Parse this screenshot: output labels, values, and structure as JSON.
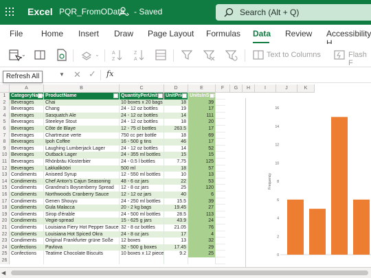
{
  "titlebar": {
    "app_name": "Excel",
    "doc_title": "PQR_FromOData",
    "status": "- Saved",
    "search_placeholder": "Search (Alt + Q)",
    "bg": "#107c41"
  },
  "tabs": [
    {
      "label": "File",
      "active": false
    },
    {
      "label": "Home",
      "active": false
    },
    {
      "label": "Insert",
      "active": false
    },
    {
      "label": "Draw",
      "active": false
    },
    {
      "label": "Page Layout",
      "active": false
    },
    {
      "label": "Formulas",
      "active": false
    },
    {
      "label": "Data",
      "active": true
    },
    {
      "label": "Review",
      "active": false
    },
    {
      "label": "Accessibility H",
      "active": false
    }
  ],
  "ribbon": {
    "text_to_columns": "Text to Columns",
    "flash_fill": "Flash F"
  },
  "tooltip": "Refresh All",
  "formula": {
    "namebox": "",
    "fx": "fx",
    "content": ""
  },
  "grid": {
    "column_letters": [
      "A",
      "B",
      "C",
      "D",
      "E",
      "F",
      "G",
      "H",
      "I",
      "J",
      "K"
    ],
    "headers": [
      "CategoryName",
      "ProductName",
      "QuantityPerUnit",
      "UnitPrice",
      "UnitsInStock"
    ],
    "rows": [
      [
        "Beverages",
        "Chai",
        "10 boxes x 20 bags",
        "18",
        "39"
      ],
      [
        "Beverages",
        "Chang",
        "24 - 12 oz bottles",
        "19",
        "17"
      ],
      [
        "Beverages",
        "Sasquatch Ale",
        "24 - 12 oz bottles",
        "14",
        "111"
      ],
      [
        "Beverages",
        "Steeleye Stout",
        "24 - 12 oz bottles",
        "18",
        "20"
      ],
      [
        "Beverages",
        "Côte de Blaye",
        "12 - 75 cl bottles",
        "263.5",
        "17"
      ],
      [
        "Beverages",
        "Chartreuse verte",
        "750 cc per bottle",
        "18",
        "69"
      ],
      [
        "Beverages",
        "Ipoh Coffee",
        "16 - 500 g tins",
        "46",
        "17"
      ],
      [
        "Beverages",
        "Laughing Lumberjack Lager",
        "24 - 12 oz bottles",
        "14",
        "52"
      ],
      [
        "Beverages",
        "Outback Lager",
        "24 - 355 ml bottles",
        "15",
        "15"
      ],
      [
        "Beverages",
        "Rhönbräu Klosterbier",
        "24 - 0.5 l bottles",
        "7.75",
        "125"
      ],
      [
        "Beverages",
        "Lakkalikööri",
        "500 ml",
        "18",
        "57"
      ],
      [
        "Condiments",
        "Aniseed Syrup",
        "12 - 550 ml bottles",
        "10",
        "13"
      ],
      [
        "Condiments",
        "Chef Anton's Cajun Seasoning",
        "48 - 6 oz jars",
        "22",
        "53"
      ],
      [
        "Condiments",
        "Grandma's Boysenberry Spread",
        "12 - 8 oz jars",
        "25",
        "120"
      ],
      [
        "Condiments",
        "Northwoods Cranberry Sauce",
        "12 - 12 oz jars",
        "40",
        "6"
      ],
      [
        "Condiments",
        "Genen Shouyu",
        "24 - 250 ml bottles",
        "15.5",
        "39"
      ],
      [
        "Condiments",
        "Gula Malacca",
        "20 - 2 kg bags",
        "19.45",
        "27"
      ],
      [
        "Condiments",
        "Sirop d'érable",
        "24 - 500 ml bottles",
        "28.5",
        "113"
      ],
      [
        "Condiments",
        "Vegie-spread",
        "15 - 625 g jars",
        "43.9",
        "24"
      ],
      [
        "Condiments",
        "Louisiana Fiery Hot Pepper Sauce",
        "32 - 8 oz bottles",
        "21.05",
        "76"
      ],
      [
        "Condiments",
        "Louisiana Hot Spiced Okra",
        "24 - 8 oz jars",
        "17",
        "4"
      ],
      [
        "Condiments",
        "Original Frankfurter grüne Soße",
        "12 boxes",
        "13",
        "32"
      ],
      [
        "Confections",
        "Pavlova",
        "32 - 500 g boxes",
        "17.45",
        "29"
      ],
      [
        "Confections",
        "Teatime Chocolate Biscuits",
        "10 boxes x 12 pieces",
        "9.2",
        "25"
      ]
    ]
  },
  "chart_data": {
    "type": "bar",
    "categories": [
      "",
      "",
      "",
      ""
    ],
    "values": [
      6,
      5,
      15,
      6
    ],
    "ylabel": "Frequency",
    "ylim": [
      0,
      16
    ],
    "yticks": [
      0,
      2,
      4,
      6,
      8,
      10,
      12,
      14,
      16
    ],
    "bar_color": "#ed7d31",
    "grid": false
  },
  "colors": {
    "accent": "#107c41",
    "header_fill": "#107c41",
    "band": "#e2efda",
    "selected_column": "#a9d08e"
  }
}
